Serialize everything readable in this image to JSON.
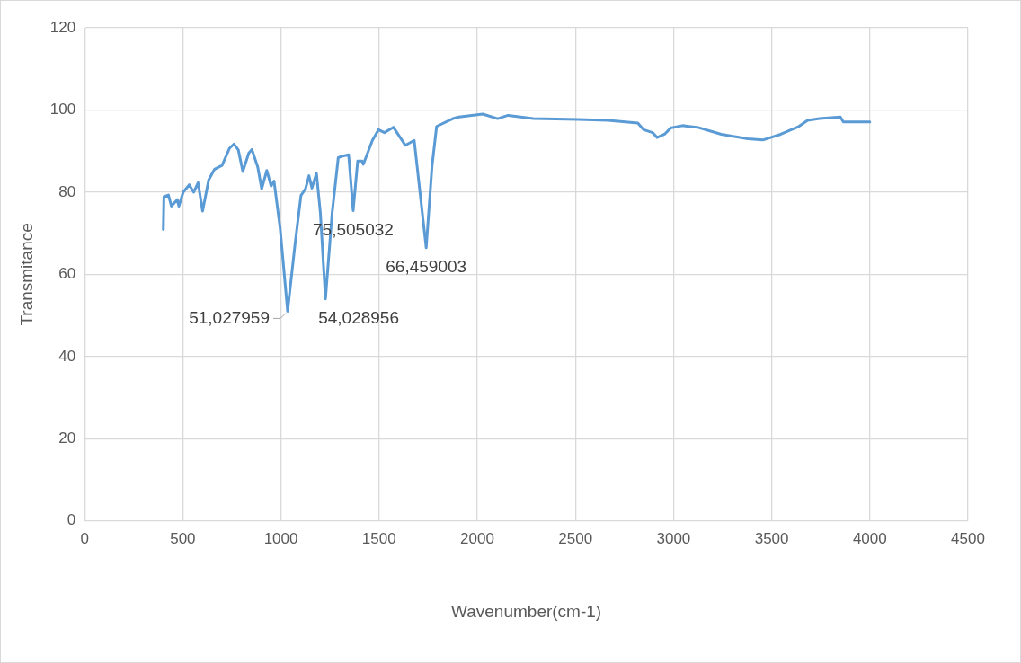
{
  "chart_data": {
    "type": "line",
    "xlabel": "Wavenumber(cm-1)",
    "ylabel": "Transmitance",
    "series": [
      {
        "color": "#5b9bd5",
        "x": [
          401,
          404,
          427,
          442,
          472,
          480,
          502,
          533,
          556,
          578,
          601,
          632,
          662,
          700,
          738,
          761,
          783,
          806,
          836,
          852,
          882,
          902,
          928,
          950,
          965,
          996,
          1034,
          1072,
          1102,
          1125,
          1143,
          1158,
          1181,
          1201,
          1227,
          1261,
          1292,
          1315,
          1345,
          1368,
          1391,
          1413,
          1420,
          1466,
          1497,
          1527,
          1573,
          1634,
          1679,
          1740,
          1770,
          1793,
          1876,
          1907,
          2028,
          2104,
          2157,
          2286,
          2514,
          2666,
          2818,
          2848,
          2893,
          2916,
          2954,
          2985,
          3045,
          3121,
          3243,
          3379,
          3455,
          3546,
          3638,
          3683,
          3744,
          3850,
          3865,
          4000
        ],
        "values": [
          70.9,
          78.9,
          79.3,
          76.6,
          78.2,
          76.6,
          80,
          81.8,
          80,
          82.3,
          75.4,
          83,
          85.6,
          86.5,
          90.7,
          91.7,
          90.3,
          85,
          89.5,
          90.4,
          86.1,
          80.8,
          85.3,
          81.5,
          82.7,
          71.2,
          51.027959,
          67.4,
          79.2,
          80.8,
          84,
          81,
          84.6,
          75,
          54.028956,
          75,
          88.4,
          88.8,
          89.1,
          75.505032,
          87.6,
          87.6,
          86.8,
          92.6,
          95.2,
          94.5,
          95.8,
          91.4,
          92.6,
          66.459003,
          86.5,
          96,
          97.9,
          98.3,
          99,
          97.9,
          98.7,
          97.9,
          97.7,
          97.5,
          96.8,
          95.2,
          94.5,
          93.3,
          94.1,
          95.6,
          96.2,
          95.8,
          94.1,
          93,
          92.7,
          94.1,
          96,
          97.5,
          97.9,
          98.3,
          97.1,
          97.1
        ]
      }
    ],
    "xlim": [
      0,
      4500
    ],
    "xticks": [
      0,
      500,
      1000,
      1500,
      2000,
      2500,
      3000,
      3500,
      4000,
      4500
    ],
    "ylim": [
      0,
      120
    ],
    "yticks": [
      0,
      20,
      40,
      60,
      80,
      100,
      120
    ],
    "grid": true,
    "legend": false,
    "marker": "none",
    "line_style": "solid",
    "annotations": [
      {
        "text": "51,027959",
        "x": 1034,
        "y": 51.027959
      },
      {
        "text": "54,028956",
        "x": 1227,
        "y": 54.028956
      },
      {
        "text": "75,505032",
        "x": 1368,
        "y": 75.505032
      },
      {
        "text": "66,459003",
        "x": 1740,
        "y": 66.459003
      }
    ]
  }
}
